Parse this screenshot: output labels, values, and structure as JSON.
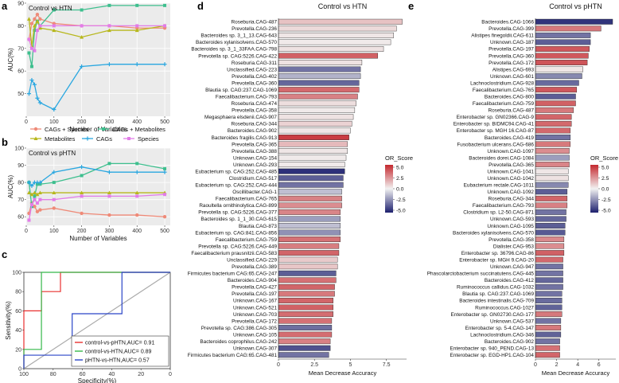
{
  "panels": {
    "a": "a",
    "b": "b",
    "c": "c",
    "d": "d",
    "e": "e"
  },
  "colors": {
    "cags_species": "#ef8a78",
    "cags_metabolites": "#3ebf8e",
    "metabolites": "#b7b71c",
    "cags": "#2aa7e0",
    "species": "#e27ce8",
    "roc_pHTN": "#e8302f",
    "roc_HTN": "#35b84a",
    "roc_pHTN_HTN": "#2a45c8",
    "diag": "#aaaaaa",
    "or_high": "#c4282e",
    "or_mid": "#f2f2f2",
    "or_low": "#1c1f6e"
  },
  "legend_ab": {
    "items": [
      "CAGs + Species",
      "CAGs + Metabolites",
      "Metabolites",
      "CAGs",
      "Species"
    ]
  },
  "chart_data": [
    {
      "id": "a",
      "type": "line",
      "title": "Control vs HTN",
      "xlabel": "Number of Variables",
      "ylabel": "AUC(%)",
      "xlim": [
        0,
        520
      ],
      "ylim": [
        40,
        90
      ],
      "xticks": [
        0,
        100,
        200,
        300,
        400,
        500
      ],
      "yticks": [
        50,
        60,
        70,
        80,
        90
      ],
      "x": [
        10,
        20,
        30,
        40,
        50,
        100,
        200,
        300,
        400,
        500
      ],
      "series": [
        {
          "name": "CAGs + Species",
          "values": [
            74,
            81,
            83,
            85,
            83,
            81,
            80,
            80,
            79,
            79
          ]
        },
        {
          "name": "CAGs + Metabolites",
          "values": [
            68,
            62,
            78,
            82,
            80,
            87,
            87,
            89,
            89,
            89
          ]
        },
        {
          "name": "Metabolites",
          "values": [
            83,
            71,
            80,
            82,
            79,
            78,
            75,
            78,
            78,
            80
          ]
        },
        {
          "name": "CAGs",
          "values": [
            50,
            56,
            54,
            48,
            46,
            43,
            62,
            63,
            63,
            63
          ]
        },
        {
          "name": "Species",
          "values": [
            74,
            70,
            69,
            78,
            80,
            80,
            80,
            80,
            80,
            80
          ]
        }
      ]
    },
    {
      "id": "b",
      "type": "line",
      "title": "Control vs pHTN",
      "xlabel": "Number of Variables",
      "ylabel": "AUC(%)",
      "xlim": [
        0,
        520
      ],
      "ylim": [
        55,
        100
      ],
      "xticks": [
        0,
        100,
        200,
        300,
        400,
        500
      ],
      "yticks": [
        60,
        70,
        80,
        90,
        100
      ],
      "x": [
        10,
        20,
        30,
        40,
        50,
        100,
        200,
        300,
        400,
        500
      ],
      "series": [
        {
          "name": "CAGs + Species",
          "values": [
            62,
            68,
            66,
            63,
            64,
            65,
            62,
            61,
            61,
            60
          ]
        },
        {
          "name": "CAGs + Metabolites",
          "values": [
            80,
            66,
            72,
            79,
            79,
            80,
            84,
            91,
            91,
            88
          ]
        },
        {
          "name": "Metabolites",
          "values": [
            74,
            73,
            74,
            73,
            74,
            74,
            74,
            74,
            74,
            74
          ]
        },
        {
          "name": "CAGs",
          "values": [
            80,
            78,
            80,
            80,
            80,
            86,
            89,
            86,
            86,
            86
          ]
        },
        {
          "name": "Species",
          "values": [
            58,
            67,
            70,
            68,
            70,
            70,
            72,
            72,
            72,
            73
          ]
        }
      ]
    },
    {
      "id": "c",
      "type": "line",
      "title": "",
      "xlabel": "Specificity(%)",
      "ylabel": "Sensitivity(%)",
      "xlim": [
        100,
        0
      ],
      "ylim": [
        0,
        100
      ],
      "xticks": [
        100,
        80,
        60,
        40,
        20,
        0
      ],
      "yticks": [
        0,
        20,
        40,
        60,
        80,
        100
      ],
      "series": [
        {
          "name": "control-vs-pHTN,AUC= 0.91",
          "points": [
            [
              100,
              0
            ],
            [
              100,
              60
            ],
            [
              88,
              60
            ],
            [
              88,
              80
            ],
            [
              75,
              80
            ],
            [
              75,
              100
            ],
            [
              0,
              100
            ]
          ]
        },
        {
          "name": "control-vs-HTN,AUC= 0.89",
          "points": [
            [
              100,
              0
            ],
            [
              100,
              20
            ],
            [
              88,
              20
            ],
            [
              88,
              100
            ],
            [
              0,
              100
            ]
          ]
        },
        {
          "name": "pHTN-vs-HTN,AUC= 0.57",
          "points": [
            [
              100,
              0
            ],
            [
              100,
              14
            ],
            [
              67,
              14
            ],
            [
              67,
              57
            ],
            [
              33,
              57
            ],
            [
              33,
              100
            ],
            [
              0,
              100
            ]
          ]
        }
      ]
    },
    {
      "id": "d",
      "type": "bar",
      "title": "Control vs HTN",
      "xlabel": "Mean Decrease Accuracy",
      "xlim": [
        0,
        8.9
      ],
      "xticks": [
        0,
        2.5,
        5,
        7.5
      ],
      "color_legend": {
        "title": "OR_Score",
        "ticks": [
          "5.0",
          "2.5",
          "0.0",
          "-2.5",
          "-5.0"
        ],
        "range": [
          -5,
          5
        ]
      },
      "categories": [
        "Roseburia.CAG-487",
        "Prevotella.CAG-236",
        "Bacteroides sp. 3_1_13.CAG-643",
        "Bacteroides xylanisolvens.CAG-570",
        "Bacteroides sp. 3_1_33FAA.CAG-798",
        "Prevotella sp. CAG:5226.CAG-422",
        "Roseburia.CAG-311",
        "Unclassified.CAG-223",
        "Prevotella.CAG-402",
        "Prevotella.CAG-360",
        "Blautia sp. CAG:237.CAG-1069",
        "Faecalibacterium.CAG-793",
        "Roseburia.CAG-474",
        "Prevotella.CAG-358",
        "Megasphaera elsdenii.CAG-907",
        "Roseburia.CAG-344",
        "Bacteroides.CAG-902",
        "Bacteroides fragilis.CAG-913",
        "Prevotella.CAG-365",
        "Prevotella.CAG-388",
        "Unknown.CAG-154",
        "Unknown.CAG-293",
        "Eubacterium sp. CAG:252.CAG-485",
        "Clostridium.CAG-517",
        "Eubacterium sp. CAG:252.CAG-444",
        "Oscillibacter.CAG-1",
        "Faecalibacterium.CAG-765",
        "Raoultella ornithinolytica.CAG-899",
        "Prevotella sp. CAG:5226.CAG-377",
        "Bacteroides sp. 1_1_30.CAG-615",
        "Blautia.CAG-873",
        "Eubacterium sp. CAG:841.CAG-856",
        "Faecalibacterium.CAG-759",
        "Prevotella sp. CAG:5226.CAG-449",
        "Faecalibacterium prausnitzii.CAG-583",
        "Unclassified.CAG-229",
        "Prevotella.CAG-389",
        "Firmicutes bacterium CAG:65.CAG-247",
        "Bacteroides.CAG-904",
        "Prevotella.CAG-427",
        "Prevotella.CAG-197",
        "Unknown.CAG-167",
        "Unknown.CAG-521",
        "Unknown.CAG-703",
        "Prevotella.CAG-172",
        "Prevotella sp. CAG:386.CAG-305",
        "Unknown.CAG-105",
        "Bacteroides coprophilus.CAG-242",
        "Unknown.CAG-307",
        "Firmicutes bacterium CAG:65.CAG-481"
      ],
      "values": [
        8.6,
        8.2,
        8.0,
        7.8,
        7.3,
        6.9,
        5.8,
        5.7,
        5.7,
        5.6,
        5.6,
        5.5,
        5.4,
        5.3,
        5.2,
        5.1,
        5.0,
        4.9,
        4.8,
        4.8,
        4.7,
        4.6,
        4.6,
        4.5,
        4.5,
        4.4,
        4.4,
        4.4,
        4.3,
        4.3,
        4.3,
        4.3,
        4.3,
        4.2,
        4.2,
        4.1,
        4.1,
        4.0,
        4.0,
        3.9,
        3.9,
        3.8,
        3.8,
        3.8,
        3.7,
        3.7,
        3.7,
        3.6,
        3.6,
        3.5
      ],
      "or_scores": [
        1.2,
        0.6,
        0.3,
        0.2,
        0.4,
        3.6,
        0.4,
        -3.0,
        -1.5,
        -3.3,
        3.4,
        2.8,
        0.5,
        0.2,
        0.4,
        0.8,
        0.3,
        4.5,
        1.4,
        0.3,
        0.2,
        0.2,
        -4.6,
        -3.5,
        -3.0,
        -1.2,
        2.8,
        2.5,
        2.7,
        -2.0,
        -1.2,
        -2.3,
        3.2,
        2.9,
        3.5,
        1.0,
        1.1,
        -3.5,
        3.2,
        3.5,
        3.0,
        3.5,
        3.6,
        3.3,
        3.2,
        -3.1,
        3.3,
        2.8,
        -3.8,
        -3.0
      ]
    },
    {
      "id": "e",
      "type": "bar",
      "title": "Control vs pHTN",
      "xlabel": "Mean Decrease Accuracy",
      "xlim": [
        0,
        7.6
      ],
      "xticks": [
        0,
        2,
        4,
        6
      ],
      "color_legend": {
        "title": "OR_Score",
        "ticks": [
          "5.0",
          "2.5",
          "0.0",
          "-2.5",
          "-5.0"
        ],
        "range": [
          -5,
          5
        ]
      },
      "categories": [
        "Bacteroides.CAG-1066",
        "Prevotella.CAG-399",
        "Alistipes finegoldii.CAG-611",
        "Unknown.CAG-187",
        "Prevotella.CAG-197",
        "Prevotella.CAG-360",
        "Prevotella.CAG-172",
        "Alistipes.CAG-693",
        "Unknown.CAG-601",
        "Lachnoclostridium.CAG-928",
        "Faecalibacterium.CAG-765",
        "Bacteroides.CAG-800",
        "Faecalibacterium.CAG-759",
        "Roseburia.CAG-487",
        "Enterobacter sp. GN02366.CAG-9",
        "Enterobacter sp. BIDMC94.CAG-41",
        "Enterobacter sp. MGH 16.CAG-87",
        "Bacteroides.CAG-419",
        "Fusobacterium ulcerans.CAG-686",
        "Unknown.CAG-1097",
        "Bacteroides dorei.CAG-1084",
        "Prevotella.CAG-365",
        "Unknown.CAG-1041",
        "Unknown.CAG-1042",
        "Eubacterium rectale.CAG-1011",
        "Unknown.CAG-1092",
        "Roseburia.CAG-344",
        "Faecalibacterium.CAG-793",
        "Clostridium sp. L2-50.CAG-871",
        "Unknown.CAG-593",
        "Unknown.CAG-1095",
        "Bacteroides xylanisolvens.CAG-570",
        "Prevotella.CAG-358",
        "Dialister.CAG-953",
        "Enterobacter sp. 36796.CAG-86",
        "Enterobacter sp. MGH 9.CAG-20",
        "Unknown.CAG-947",
        "Phascolarctobacterium succinatutens.CAG-445",
        "Bacteroides.CAG-412",
        "Ruminococcus callidus.CAG-1032",
        "Blautia sp. CAG:237.CAG-1069",
        "Bacteroides intestinalis.CAG-709",
        "Ruminococcus.CAG-1027",
        "Enterobacter sp. GN02730.CAG-177",
        "Unknown.CAG-537",
        "Enterobacter sp. 5-4.CAG-147",
        "Lachnoclostridium.CAG-346",
        "Bacteroides.CAG-902",
        "Enterobacter sp. 940_PEND.CAG-13",
        "Enterobacter sp. EGD-HP1.CAG-104"
      ],
      "values": [
        7.3,
        6.2,
        5.2,
        5.2,
        5.1,
        5.0,
        4.9,
        4.5,
        4.4,
        4.1,
        3.9,
        3.8,
        3.8,
        3.6,
        3.4,
        3.4,
        3.3,
        3.3,
        3.3,
        3.2,
        3.2,
        3.2,
        3.1,
        3.1,
        3.1,
        3.0,
        3.0,
        3.0,
        2.9,
        2.9,
        2.8,
        2.8,
        2.7,
        2.7,
        2.7,
        2.6,
        2.6,
        2.6,
        2.6,
        2.6,
        2.5,
        2.5,
        2.5,
        2.5,
        2.4,
        2.4,
        2.4,
        2.3,
        2.3,
        2.3
      ],
      "or_scores": [
        -4.5,
        3.0,
        -3.0,
        -3.5,
        3.8,
        3.8,
        3.9,
        0.3,
        -2.5,
        -3.2,
        3.8,
        -3.5,
        3.6,
        3.0,
        3.5,
        3.4,
        3.4,
        -3.0,
        3.0,
        2.5,
        -2.0,
        2.7,
        0.3,
        0.4,
        -2.5,
        -3.5,
        3.5,
        2.8,
        -3.0,
        -3.3,
        -3.5,
        -3.6,
        2.6,
        2.5,
        3.6,
        3.4,
        -3.0,
        -3.0,
        -3.3,
        -3.0,
        -3.0,
        -3.2,
        -3.4,
        3.0,
        -3.0,
        3.0,
        -3.4,
        -3.0,
        3.2,
        3.5
      ]
    }
  ]
}
